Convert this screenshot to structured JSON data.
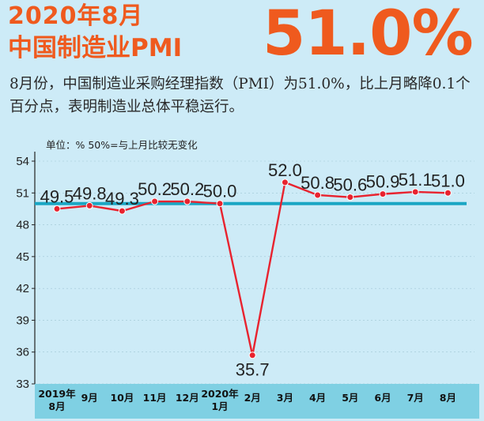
{
  "header": {
    "title_line1": "2020年8月",
    "title_line2": "中国制造业PMI",
    "big_value": "51.0%"
  },
  "description": "8月份，中国制造业采购经理指数（PMI）为51.0%，比上月略降0.1个百分点，表明制造业总体平稳运行。",
  "colors": {
    "accent": "#ef5a1e",
    "line": "#e8232f",
    "reference_line": "#1aa6c4",
    "background": "#cdebf7",
    "x_axis_band": "#7fd0e3"
  },
  "chart_data": {
    "type": "line",
    "unit_note": "单位：%  50%=与上月比较无变化",
    "categories": [
      {
        "line1": "2019年",
        "line2": "8月"
      },
      {
        "line1": "9月",
        "line2": ""
      },
      {
        "line1": "10月",
        "line2": ""
      },
      {
        "line1": "11月",
        "line2": ""
      },
      {
        "line1": "12月",
        "line2": ""
      },
      {
        "line1": "2020年",
        "line2": "1月"
      },
      {
        "line1": "2月",
        "line2": ""
      },
      {
        "line1": "3月",
        "line2": ""
      },
      {
        "line1": "4月",
        "line2": ""
      },
      {
        "line1": "5月",
        "line2": ""
      },
      {
        "line1": "6月",
        "line2": ""
      },
      {
        "line1": "7月",
        "line2": ""
      },
      {
        "line1": "8月",
        "line2": ""
      }
    ],
    "values": [
      49.5,
      49.8,
      49.3,
      50.2,
      50.2,
      50.0,
      35.7,
      52.0,
      50.8,
      50.6,
      50.9,
      51.1,
      51.0
    ],
    "value_labels": [
      "49.5",
      "49.8",
      "49.3",
      "50.2",
      "50.2",
      "50.0",
      "35.7",
      "52.0",
      "50.8",
      "50.6",
      "50.9",
      "51.1",
      "51.0"
    ],
    "reference_value": 50,
    "ylim": [
      33,
      54
    ],
    "yticks": [
      54,
      51,
      48,
      45,
      42,
      39,
      36,
      33
    ]
  }
}
